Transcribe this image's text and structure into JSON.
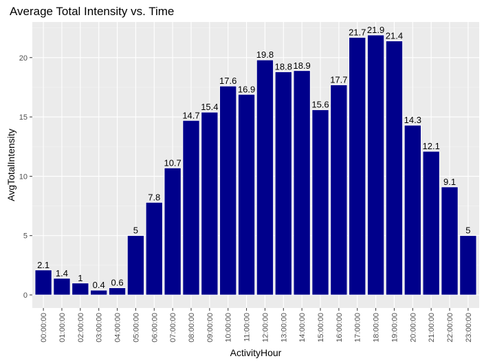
{
  "chart_data": {
    "type": "bar",
    "title": "Average Total Intensity vs. Time",
    "xlabel": "ActivityHour",
    "ylabel": "AvgTotalIntensity",
    "categories": [
      "00:00:00",
      "01:00:00",
      "02:00:00",
      "03:00:00",
      "04:00:00",
      "05:00:00",
      "06:00:00",
      "07:00:00",
      "08:00:00",
      "09:00:00",
      "10:00:00",
      "11:00:00",
      "12:00:00",
      "13:00:00",
      "14:00:00",
      "15:00:00",
      "16:00:00",
      "17:00:00",
      "18:00:00",
      "19:00:00",
      "20:00:00",
      "21:00:00",
      "22:00:00",
      "23:00:00"
    ],
    "values": [
      2.1,
      1.4,
      1,
      0.4,
      0.6,
      5,
      7.8,
      10.7,
      14.7,
      15.4,
      17.6,
      16.9,
      19.8,
      18.8,
      18.9,
      15.6,
      17.7,
      21.7,
      21.9,
      21.4,
      14.3,
      12.1,
      9.1,
      5
    ],
    "data_labels": [
      "2.1",
      "1.4",
      "1",
      "0.4",
      "0.6",
      "5",
      "7.8",
      "10.7",
      "14.7",
      "15.4",
      "17.6",
      "16.9",
      "19.8",
      "18.8",
      "18.9",
      "15.6",
      "17.7",
      "21.7",
      "21.9",
      "21.4",
      "14.3",
      "12.1",
      "9.1",
      "5"
    ],
    "ylim": [
      -1.1,
      23.0
    ],
    "yticks": [
      0,
      5,
      10,
      15,
      20
    ],
    "ytick_labels": [
      "0",
      "5",
      "10",
      "15",
      "20"
    ],
    "grid": true,
    "colors": {
      "bar_fill": "#00008B",
      "bar_border": "#ffffff",
      "panel_background": "#EBEBEB",
      "grid_major": "#ffffff",
      "grid_minor": "#F5F5F5",
      "tick_label": "#4d4d4d"
    }
  }
}
